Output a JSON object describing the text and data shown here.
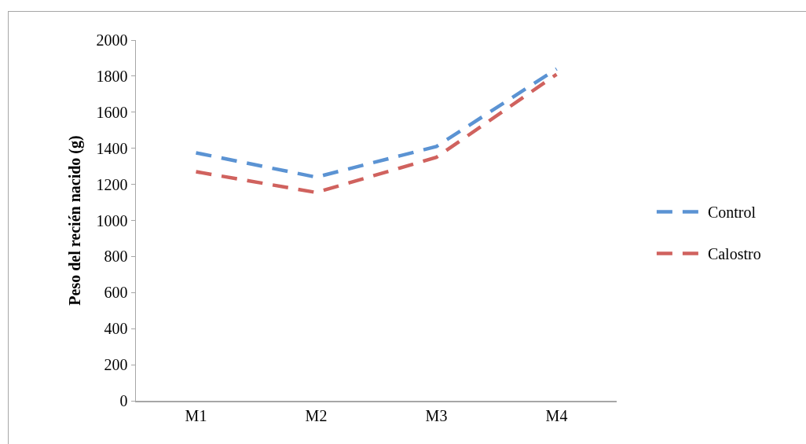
{
  "chart_data": {
    "type": "line",
    "ylabel": "Peso del recién nacido (g)",
    "categories": [
      "M1",
      "M2",
      "M3",
      "M4"
    ],
    "series": [
      {
        "name": "Control",
        "color": "#5b93d3",
        "values": [
          1375,
          1240,
          1410,
          1840
        ]
      },
      {
        "name": "Calostro",
        "color": "#d0625e",
        "values": [
          1270,
          1155,
          1350,
          1810
        ]
      }
    ],
    "ylim": [
      0,
      2000
    ],
    "yticks": [
      0,
      200,
      400,
      600,
      800,
      1000,
      1200,
      1400,
      1600,
      1800,
      2000
    ],
    "grid": false,
    "legend": "right",
    "marker": "none",
    "line_style": "dashed"
  }
}
